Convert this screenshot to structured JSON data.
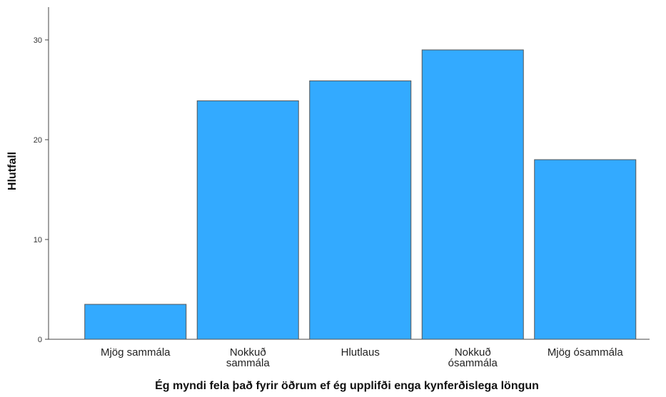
{
  "chart_data": {
    "type": "bar",
    "title": "",
    "xlabel": "Ég myndi fela það fyrir öðrum ef ég upplifði enga kynferðislega löngun",
    "ylabel": "Hlutfall",
    "categories": [
      [
        "Mjög sammála"
      ],
      [
        "Nokkuð",
        "sammála"
      ],
      [
        "Hlutlaus"
      ],
      [
        "Nokkuð",
        "ósammála"
      ],
      [
        "Mjög ósammála"
      ]
    ],
    "values": [
      3.5,
      23.9,
      25.9,
      29.0,
      18.0
    ],
    "ylim": [
      0,
      33
    ],
    "yticks": [
      "0",
      "10",
      "20",
      "30"
    ],
    "bar_color": "#33aaff",
    "bar_stroke": "#555555",
    "grid": false
  }
}
